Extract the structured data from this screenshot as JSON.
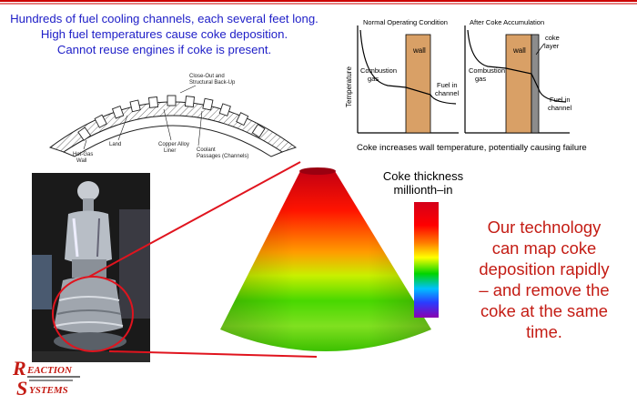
{
  "colors": {
    "accent_red": "#cc0000",
    "intro_blue": "#2020c8",
    "callout_red": "#c41c14",
    "wall_tan": "#d9a066",
    "coke_gray": "#8c8c8c"
  },
  "intro": {
    "lines": [
      "Hundreds of fuel cooling channels, each several feet long.",
      "High fuel temperatures cause coke deposition.",
      "Cannot reuse engines if coke is present."
    ]
  },
  "channels_diagram": {
    "labels": {
      "closeout": "Close-Out and",
      "structural": "Structural Back-Up",
      "land": "Land",
      "copper_1": "Copper Alloy",
      "copper_2": "Liner",
      "coolant_1": "Coolant",
      "coolant_2": "Passages (Channels)",
      "hotgas_1": "Hot-Gas",
      "hotgas_2": "Wall"
    }
  },
  "temp_chart": {
    "ylabel": "Temperature",
    "panels": [
      {
        "title": "Normal Operating Condition",
        "wall_label": "wall",
        "gas_1": "Combustion",
        "gas_2": "gas",
        "fuel_1": "Fuel in",
        "fuel_2": "channel"
      },
      {
        "title": "After Coke Accumulation",
        "wall_label": "wall",
        "gas_1": "Combustion",
        "gas_2": "gas",
        "fuel_1": "Fuel in",
        "fuel_2": "channel",
        "coke_1": "coke",
        "coke_2": "layer"
      }
    ],
    "caption": "Coke increases wall temperature, potentially causing failure"
  },
  "legend": {
    "title_1": "Coke thickness",
    "title_2": "millionth–in"
  },
  "callout": {
    "lines": [
      "Our technology",
      "can map coke",
      "deposition rapidly",
      "– and remove the",
      "coke at the same",
      "time."
    ]
  },
  "logo": {
    "line1_initial": "R",
    "line1_rest": "EACTION",
    "line2_initial": "S",
    "line2_rest": "YSTEMS"
  }
}
